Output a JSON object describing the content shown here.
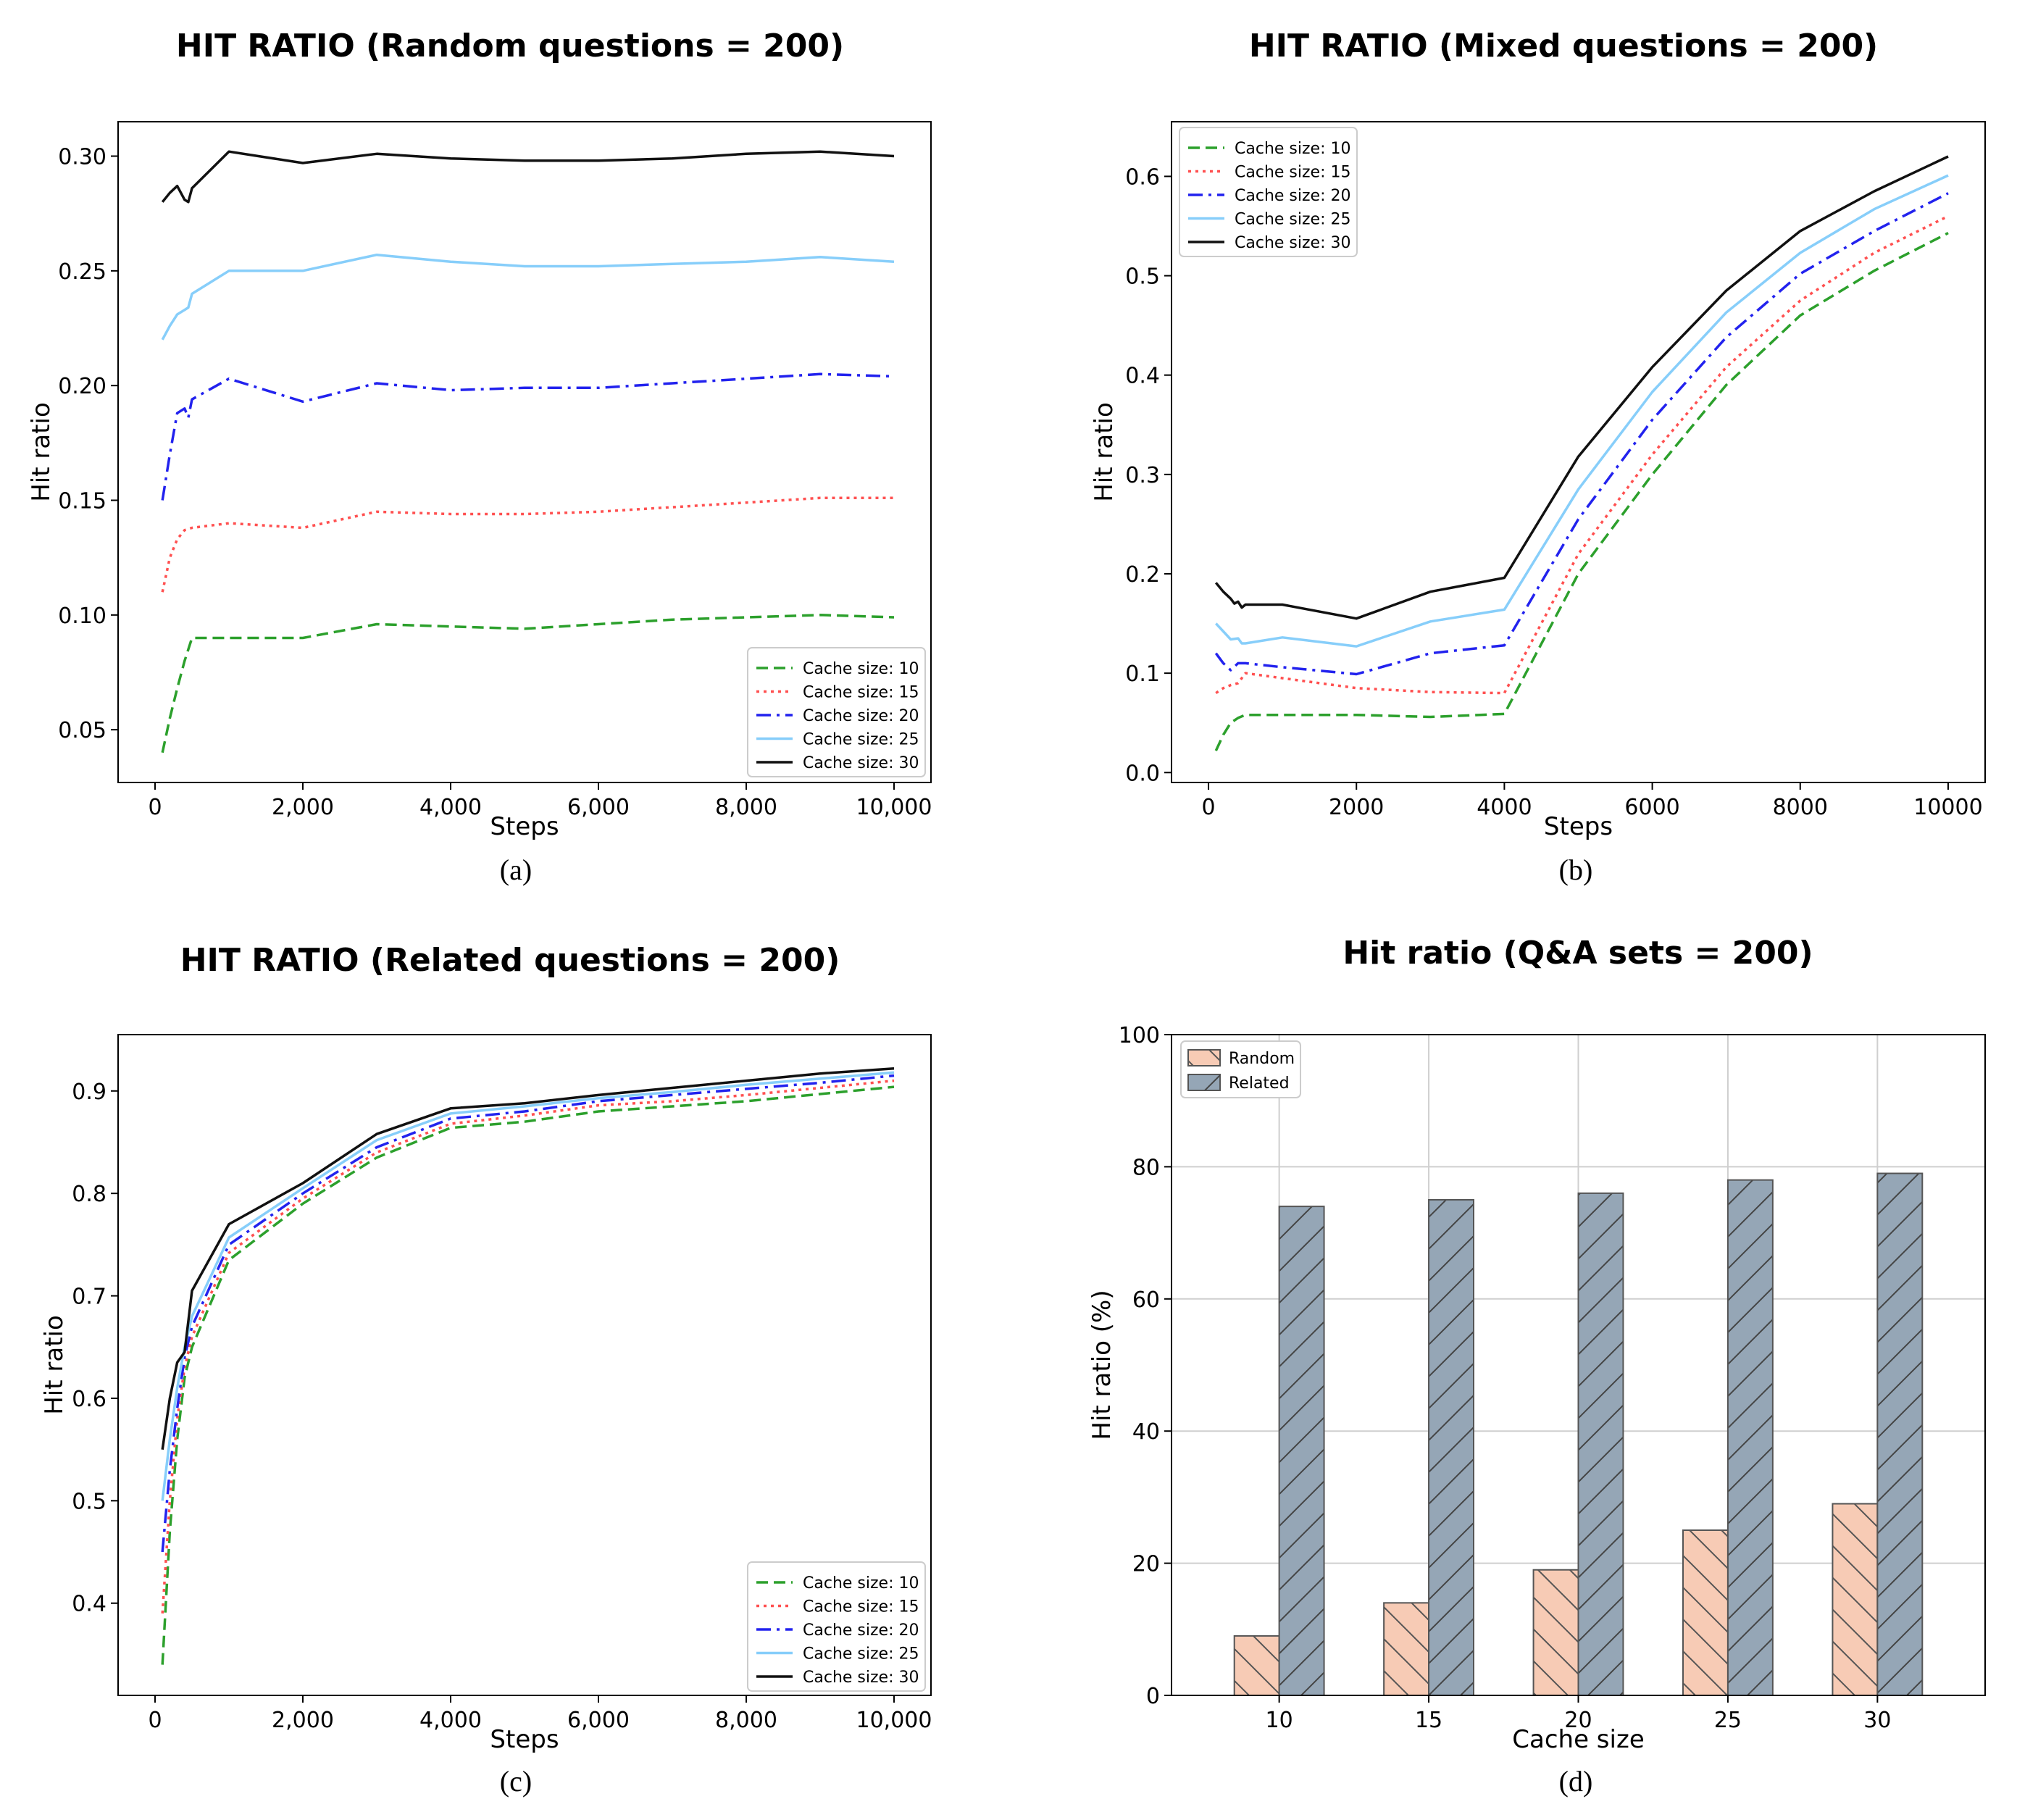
{
  "chart_data": [
    {
      "type": "line",
      "caption": "(a)",
      "title": "HIT RATIO (Random questions = 200)",
      "xlabel": "Steps",
      "ylabel": "Hit ratio",
      "xlim": [
        -500,
        10500
      ],
      "ylim": [
        0.027,
        0.315
      ],
      "xticks": [
        0,
        2000,
        4000,
        6000,
        8000,
        10000
      ],
      "xtick_labels": [
        "0",
        "2,000",
        "4,000",
        "6,000",
        "8,000",
        "10,000"
      ],
      "yticks": [
        0.05,
        0.1,
        0.15,
        0.2,
        0.25,
        0.3
      ],
      "ytick_labels": [
        "0.05",
        "0.10",
        "0.15",
        "0.20",
        "0.25",
        "0.30"
      ],
      "grid": false,
      "legend_position": "lower-right",
      "series": [
        {
          "name": "Cache size: 10",
          "color": "#2ca02c",
          "dash": "dashed",
          "x": [
            100,
            200,
            300,
            400,
            500,
            1000,
            2000,
            3000,
            4000,
            5000,
            6000,
            7000,
            8000,
            9000,
            10000
          ],
          "y": [
            0.04,
            0.055,
            0.068,
            0.08,
            0.09,
            0.09,
            0.09,
            0.096,
            0.095,
            0.094,
            0.096,
            0.098,
            0.099,
            0.1,
            0.099
          ]
        },
        {
          "name": "Cache size: 15",
          "color": "#ff5050",
          "dash": "dotted",
          "x": [
            100,
            200,
            300,
            400,
            500,
            1000,
            2000,
            3000,
            4000,
            5000,
            6000,
            7000,
            8000,
            9000,
            10000
          ],
          "y": [
            0.11,
            0.125,
            0.133,
            0.137,
            0.138,
            0.14,
            0.138,
            0.145,
            0.144,
            0.144,
            0.145,
            0.147,
            0.149,
            0.151,
            0.151
          ]
        },
        {
          "name": "Cache size: 20",
          "color": "#2222ee",
          "dash": "dashdot",
          "x": [
            100,
            200,
            300,
            400,
            450,
            500,
            1000,
            2000,
            3000,
            4000,
            5000,
            6000,
            7000,
            8000,
            9000,
            10000
          ],
          "y": [
            0.15,
            0.17,
            0.188,
            0.19,
            0.186,
            0.194,
            0.203,
            0.193,
            0.201,
            0.198,
            0.199,
            0.199,
            0.201,
            0.203,
            0.205,
            0.204
          ]
        },
        {
          "name": "Cache size: 25",
          "color": "#87cefa",
          "dash": "solid",
          "x": [
            100,
            200,
            300,
            400,
            450,
            500,
            1000,
            2000,
            3000,
            4000,
            5000,
            6000,
            7000,
            8000,
            9000,
            10000
          ],
          "y": [
            0.22,
            0.226,
            0.231,
            0.233,
            0.234,
            0.24,
            0.25,
            0.25,
            0.257,
            0.254,
            0.252,
            0.252,
            0.253,
            0.254,
            0.256,
            0.254
          ]
        },
        {
          "name": "Cache size: 30",
          "color": "#111111",
          "dash": "solid",
          "x": [
            100,
            200,
            300,
            400,
            450,
            500,
            1000,
            2000,
            3000,
            4000,
            5000,
            6000,
            7000,
            8000,
            9000,
            10000
          ],
          "y": [
            0.28,
            0.284,
            0.287,
            0.281,
            0.28,
            0.286,
            0.302,
            0.297,
            0.301,
            0.299,
            0.298,
            0.298,
            0.299,
            0.301,
            0.302,
            0.3
          ]
        }
      ]
    },
    {
      "type": "line",
      "caption": "(b)",
      "title": "HIT RATIO (Mixed questions = 200)",
      "xlabel": "Steps",
      "ylabel": "Hit ratio",
      "xlim": [
        -500,
        10500
      ],
      "ylim": [
        -0.01,
        0.655
      ],
      "xticks": [
        0,
        2000,
        4000,
        6000,
        8000,
        10000
      ],
      "xtick_labels": [
        "0",
        "2000",
        "4000",
        "6000",
        "8000",
        "10000"
      ],
      "yticks": [
        0.0,
        0.1,
        0.2,
        0.3,
        0.4,
        0.5,
        0.6
      ],
      "ytick_labels": [
        "0.0",
        "0.1",
        "0.2",
        "0.3",
        "0.4",
        "0.5",
        "0.6"
      ],
      "grid": false,
      "legend_position": "upper-left",
      "series": [
        {
          "name": "Cache size: 10",
          "color": "#2ca02c",
          "dash": "dashed",
          "x": [
            100,
            200,
            300,
            400,
            500,
            1000,
            2000,
            3000,
            4000,
            5000,
            6000,
            7000,
            8000,
            9000,
            10000
          ],
          "y": [
            0.022,
            0.038,
            0.05,
            0.055,
            0.058,
            0.058,
            0.058,
            0.056,
            0.059,
            0.2,
            0.3,
            0.39,
            0.46,
            0.505,
            0.543
          ]
        },
        {
          "name": "Cache size: 15",
          "color": "#ff5050",
          "dash": "dotted",
          "x": [
            100,
            200,
            300,
            400,
            500,
            1000,
            2000,
            3000,
            4000,
            5000,
            6000,
            7000,
            8000,
            9000,
            10000
          ],
          "y": [
            0.08,
            0.085,
            0.088,
            0.09,
            0.1,
            0.095,
            0.085,
            0.081,
            0.08,
            0.22,
            0.32,
            0.408,
            0.475,
            0.523,
            0.56
          ]
        },
        {
          "name": "Cache size: 20",
          "color": "#2222ee",
          "dash": "dashdot",
          "x": [
            100,
            200,
            300,
            400,
            500,
            1000,
            2000,
            3000,
            4000,
            5000,
            6000,
            7000,
            8000,
            9000,
            10000
          ],
          "y": [
            0.12,
            0.11,
            0.103,
            0.11,
            0.11,
            0.106,
            0.099,
            0.12,
            0.128,
            0.255,
            0.355,
            0.438,
            0.502,
            0.545,
            0.583
          ]
        },
        {
          "name": "Cache size: 25",
          "color": "#87cefa",
          "dash": "solid",
          "x": [
            100,
            200,
            300,
            400,
            450,
            500,
            1000,
            2000,
            3000,
            4000,
            5000,
            6000,
            7000,
            8000,
            9000,
            10000
          ],
          "y": [
            0.15,
            0.142,
            0.134,
            0.135,
            0.13,
            0.13,
            0.136,
            0.127,
            0.152,
            0.164,
            0.285,
            0.383,
            0.463,
            0.523,
            0.567,
            0.601
          ]
        },
        {
          "name": "Cache size: 30",
          "color": "#111111",
          "dash": "solid",
          "x": [
            100,
            200,
            300,
            350,
            400,
            450,
            500,
            1000,
            2000,
            3000,
            4000,
            5000,
            6000,
            7000,
            8000,
            9000,
            10000
          ],
          "y": [
            0.191,
            0.182,
            0.175,
            0.17,
            0.172,
            0.166,
            0.169,
            0.169,
            0.155,
            0.182,
            0.196,
            0.318,
            0.408,
            0.485,
            0.545,
            0.585,
            0.62
          ]
        }
      ]
    },
    {
      "type": "line",
      "caption": "(c)",
      "title": "HIT RATIO (Related questions = 200)",
      "xlabel": "Steps",
      "ylabel": "Hit ratio",
      "xlim": [
        -500,
        10500
      ],
      "ylim": [
        0.31,
        0.955
      ],
      "xticks": [
        0,
        2000,
        4000,
        6000,
        8000,
        10000
      ],
      "xtick_labels": [
        "0",
        "2,000",
        "4,000",
        "6,000",
        "8,000",
        "10,000"
      ],
      "yticks": [
        0.4,
        0.5,
        0.6,
        0.7,
        0.8,
        0.9
      ],
      "ytick_labels": [
        "0.4",
        "0.5",
        "0.6",
        "0.7",
        "0.8",
        "0.9"
      ],
      "grid": false,
      "legend_position": "lower-right",
      "series": [
        {
          "name": "Cache size: 10",
          "color": "#2ca02c",
          "dash": "dashed",
          "x": [
            100,
            200,
            300,
            400,
            500,
            1000,
            2000,
            3000,
            4000,
            5000,
            6000,
            7000,
            8000,
            9000,
            10000
          ],
          "y": [
            0.34,
            0.47,
            0.56,
            0.62,
            0.65,
            0.735,
            0.79,
            0.835,
            0.864,
            0.87,
            0.88,
            0.885,
            0.89,
            0.897,
            0.904
          ]
        },
        {
          "name": "Cache size: 15",
          "color": "#ff5050",
          "dash": "dotted",
          "x": [
            100,
            200,
            300,
            400,
            500,
            1000,
            2000,
            3000,
            4000,
            5000,
            6000,
            7000,
            8000,
            9000,
            10000
          ],
          "y": [
            0.39,
            0.5,
            0.58,
            0.63,
            0.66,
            0.742,
            0.795,
            0.84,
            0.868,
            0.876,
            0.886,
            0.89,
            0.896,
            0.903,
            0.91
          ]
        },
        {
          "name": "Cache size: 20",
          "color": "#2222ee",
          "dash": "dashdot",
          "x": [
            100,
            200,
            300,
            400,
            500,
            1000,
            2000,
            3000,
            4000,
            5000,
            6000,
            7000,
            8000,
            9000,
            10000
          ],
          "y": [
            0.45,
            0.53,
            0.59,
            0.64,
            0.67,
            0.75,
            0.8,
            0.845,
            0.873,
            0.88,
            0.89,
            0.896,
            0.902,
            0.908,
            0.915
          ]
        },
        {
          "name": "Cache size: 25",
          "color": "#87cefa",
          "dash": "solid",
          "x": [
            100,
            200,
            300,
            400,
            500,
            1000,
            2000,
            3000,
            4000,
            5000,
            6000,
            7000,
            8000,
            9000,
            10000
          ],
          "y": [
            0.5,
            0.56,
            0.61,
            0.65,
            0.68,
            0.757,
            0.805,
            0.852,
            0.878,
            0.885,
            0.893,
            0.899,
            0.906,
            0.912,
            0.918
          ]
        },
        {
          "name": "Cache size: 30",
          "color": "#111111",
          "dash": "solid",
          "x": [
            100,
            200,
            300,
            400,
            500,
            1000,
            2000,
            3000,
            4000,
            5000,
            6000,
            7000,
            8000,
            9000,
            10000
          ],
          "y": [
            0.55,
            0.6,
            0.635,
            0.645,
            0.705,
            0.77,
            0.81,
            0.858,
            0.883,
            0.888,
            0.896,
            0.903,
            0.91,
            0.917,
            0.922
          ]
        }
      ]
    },
    {
      "type": "bar",
      "caption": "(d)",
      "title": "Hit ratio (Q&A sets = 200)",
      "xlabel": "Cache size",
      "ylabel": "Hit ratio (%)",
      "categories": [
        "10",
        "15",
        "20",
        "25",
        "30"
      ],
      "ylim": [
        0,
        100
      ],
      "yticks": [
        0,
        20,
        40,
        60,
        80,
        100
      ],
      "ytick_labels": [
        "0",
        "20",
        "40",
        "60",
        "80",
        "100"
      ],
      "grid": true,
      "legend_position": "upper-left",
      "series": [
        {
          "name": "Random",
          "color": "#f7cbb5",
          "hatch": "backslash",
          "values": [
            9,
            14,
            19,
            25,
            29
          ]
        },
        {
          "name": "Related",
          "color": "#95a6b6",
          "hatch": "slash",
          "values": [
            74,
            75,
            76,
            78,
            79
          ]
        }
      ]
    }
  ]
}
